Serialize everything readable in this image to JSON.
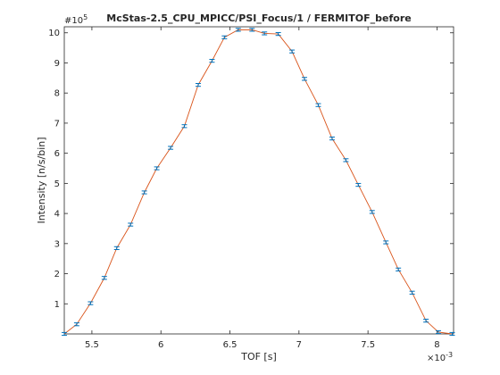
{
  "chart_data": {
    "type": "line",
    "title": "McStas-2.5_CPU_MPICC/PSI_Focus/1 / FERMITOF_before",
    "xlabel": "TOF [s]",
    "ylabel": "Intensity [n/s/bin]",
    "x_multiplier_base": "×10",
    "x_multiplier_exp": "-3",
    "y_multiplier_base": "#10",
    "y_multiplier_exp": "5",
    "xlim": [
      5.3,
      8.12
    ],
    "ylim": [
      0,
      10.2
    ],
    "x_ticks": [
      5.5,
      6,
      6.5,
      7,
      7.5,
      8
    ],
    "x_tick_labels": [
      "5.5",
      "6",
      "6.5",
      "7",
      "7.5",
      "8"
    ],
    "y_ticks": [
      1,
      2,
      3,
      4,
      5,
      6,
      7,
      8,
      9,
      10
    ],
    "y_tick_labels": [
      "1",
      "2",
      "3",
      "4",
      "5",
      "6",
      "7",
      "8",
      "9",
      "10"
    ],
    "grid": false,
    "line_color": "#d95319",
    "marker_color": "#0072bd",
    "series": [
      {
        "x": [
          5.3,
          5.39,
          5.49,
          5.59,
          5.68,
          5.78,
          5.88,
          5.97,
          6.07,
          6.17,
          6.27,
          6.37,
          6.46,
          6.56,
          6.66,
          6.75,
          6.85,
          6.95,
          7.04,
          7.14,
          7.24,
          7.34,
          7.43,
          7.53,
          7.63,
          7.72,
          7.82,
          7.92,
          8.01,
          8.11
        ],
        "y": [
          0.0,
          0.32,
          1.02,
          1.86,
          2.85,
          3.63,
          4.7,
          5.5,
          6.18,
          6.9,
          8.27,
          9.07,
          9.85,
          10.1,
          10.1,
          9.98,
          9.96,
          9.38,
          8.47,
          7.6,
          6.49,
          5.77,
          4.95,
          4.05,
          3.04,
          2.14,
          1.37,
          0.44,
          0.06,
          0.0
        ]
      }
    ]
  }
}
